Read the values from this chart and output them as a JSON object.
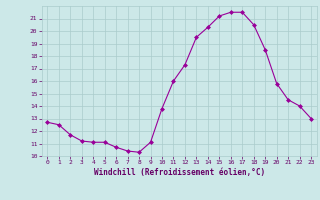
{
  "x": [
    0,
    1,
    2,
    3,
    4,
    5,
    6,
    7,
    8,
    9,
    10,
    11,
    12,
    13,
    14,
    15,
    16,
    17,
    18,
    19,
    20,
    21,
    22,
    23
  ],
  "y": [
    12.7,
    12.5,
    11.7,
    11.2,
    11.1,
    11.1,
    10.7,
    10.4,
    10.3,
    11.1,
    13.8,
    16.0,
    17.3,
    19.5,
    20.3,
    21.2,
    21.5,
    21.5,
    20.5,
    18.5,
    15.8,
    14.5,
    14.0,
    13.0
  ],
  "line_color": "#990099",
  "marker": "D",
  "marker_size": 2,
  "bg_color": "#cce8e8",
  "grid_color": "#aacccc",
  "xlabel": "Windchill (Refroidissement éolien,°C)",
  "xlabel_color": "#660066",
  "tick_color": "#660066",
  "ylim": [
    10,
    22
  ],
  "xlim": [
    -0.5,
    23.5
  ],
  "yticks": [
    10,
    11,
    12,
    13,
    14,
    15,
    16,
    17,
    18,
    19,
    20,
    21
  ],
  "xticks": [
    0,
    1,
    2,
    3,
    4,
    5,
    6,
    7,
    8,
    9,
    10,
    11,
    12,
    13,
    14,
    15,
    16,
    17,
    18,
    19,
    20,
    21,
    22,
    23
  ]
}
